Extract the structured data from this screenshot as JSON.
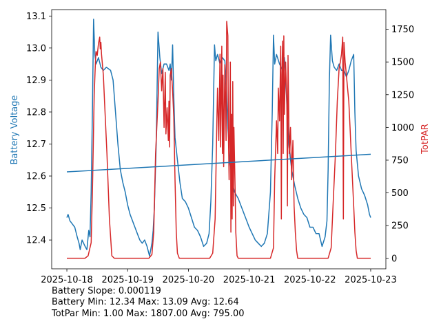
{
  "chart_data": {
    "type": "line",
    "title": "",
    "xlabel": "",
    "x_ticks": [
      "2025-10-18",
      "2025-10-19",
      "2025-10-20",
      "2025-10-21",
      "2025-10-22",
      "2025-10-23"
    ],
    "xlim_days": [
      -0.25,
      5.25
    ],
    "left_axis": {
      "label": "Battery Voltage",
      "color": "#1f77b4",
      "ylim": [
        12.31,
        13.12
      ],
      "ticks": [
        12.4,
        12.5,
        12.6,
        12.7,
        12.8,
        12.9,
        13.0,
        13.1
      ],
      "tick_labels": [
        "12.4",
        "12.5",
        "12.6",
        "12.7",
        "12.8",
        "12.9",
        "13.0",
        "13.1"
      ]
    },
    "right_axis": {
      "label": "TotPAR",
      "color": "#d62728",
      "ylim": [
        -80,
        1900
      ],
      "ticks": [
        0,
        250,
        500,
        750,
        1000,
        1250,
        1500,
        1750
      ],
      "tick_labels": [
        "0",
        "250",
        "500",
        "750",
        "1000",
        "1250",
        "1500",
        "1750"
      ]
    },
    "series": [
      {
        "name": "Battery Voltage",
        "axis": "left",
        "color": "#1f77b4",
        "points": [
          [
            0.0,
            12.47
          ],
          [
            0.02,
            12.48
          ],
          [
            0.05,
            12.46
          ],
          [
            0.09,
            12.45
          ],
          [
            0.13,
            12.44
          ],
          [
            0.17,
            12.41
          ],
          [
            0.2,
            12.39
          ],
          [
            0.22,
            12.37
          ],
          [
            0.25,
            12.4
          ],
          [
            0.3,
            12.38
          ],
          [
            0.33,
            12.37
          ],
          [
            0.36,
            12.43
          ],
          [
            0.38,
            12.41
          ],
          [
            0.4,
            12.55
          ],
          [
            0.42,
            12.8
          ],
          [
            0.44,
            13.09
          ],
          [
            0.46,
            12.98
          ],
          [
            0.48,
            12.95
          ],
          [
            0.52,
            12.97
          ],
          [
            0.56,
            12.94
          ],
          [
            0.6,
            12.93
          ],
          [
            0.65,
            12.94
          ],
          [
            0.72,
            12.93
          ],
          [
            0.76,
            12.9
          ],
          [
            0.8,
            12.8
          ],
          [
            0.84,
            12.7
          ],
          [
            0.88,
            12.62
          ],
          [
            0.92,
            12.58
          ],
          [
            0.96,
            12.55
          ],
          [
            1.0,
            12.51
          ],
          [
            1.04,
            12.48
          ],
          [
            1.08,
            12.46
          ],
          [
            1.12,
            12.44
          ],
          [
            1.16,
            12.42
          ],
          [
            1.2,
            12.4
          ],
          [
            1.24,
            12.39
          ],
          [
            1.28,
            12.4
          ],
          [
            1.32,
            12.38
          ],
          [
            1.36,
            12.35
          ],
          [
            1.4,
            12.39
          ],
          [
            1.42,
            12.43
          ],
          [
            1.44,
            12.5
          ],
          [
            1.47,
            12.7
          ],
          [
            1.5,
            13.05
          ],
          [
            1.53,
            12.97
          ],
          [
            1.56,
            12.92
          ],
          [
            1.6,
            12.95
          ],
          [
            1.64,
            12.95
          ],
          [
            1.68,
            12.93
          ],
          [
            1.7,
            12.95
          ],
          [
            1.72,
            12.9
          ],
          [
            1.74,
            13.01
          ],
          [
            1.76,
            12.85
          ],
          [
            1.78,
            12.72
          ],
          [
            1.82,
            12.65
          ],
          [
            1.86,
            12.58
          ],
          [
            1.9,
            12.53
          ],
          [
            1.95,
            12.52
          ],
          [
            2.0,
            12.5
          ],
          [
            2.05,
            12.47
          ],
          [
            2.1,
            12.44
          ],
          [
            2.15,
            12.43
          ],
          [
            2.2,
            12.41
          ],
          [
            2.25,
            12.38
          ],
          [
            2.3,
            12.39
          ],
          [
            2.34,
            12.42
          ],
          [
            2.37,
            12.52
          ],
          [
            2.4,
            12.7
          ],
          [
            2.43,
            13.01
          ],
          [
            2.45,
            12.96
          ],
          [
            2.48,
            12.98
          ],
          [
            2.52,
            12.95
          ],
          [
            2.56,
            12.97
          ],
          [
            2.6,
            12.96
          ],
          [
            2.62,
            12.9
          ],
          [
            2.65,
            12.75
          ],
          [
            2.68,
            12.66
          ],
          [
            2.72,
            12.58
          ],
          [
            2.76,
            12.55
          ],
          [
            2.82,
            12.53
          ],
          [
            2.88,
            12.5
          ],
          [
            2.94,
            12.47
          ],
          [
            3.0,
            12.44
          ],
          [
            3.05,
            12.42
          ],
          [
            3.1,
            12.4
          ],
          [
            3.15,
            12.39
          ],
          [
            3.2,
            12.38
          ],
          [
            3.25,
            12.39
          ],
          [
            3.3,
            12.42
          ],
          [
            3.35,
            12.55
          ],
          [
            3.38,
            12.8
          ],
          [
            3.4,
            13.04
          ],
          [
            3.42,
            12.95
          ],
          [
            3.45,
            12.98
          ],
          [
            3.5,
            12.95
          ],
          [
            3.55,
            12.93
          ],
          [
            3.58,
            12.97
          ],
          [
            3.6,
            12.92
          ],
          [
            3.62,
            12.82
          ],
          [
            3.65,
            12.7
          ],
          [
            3.7,
            12.62
          ],
          [
            3.75,
            12.57
          ],
          [
            3.8,
            12.53
          ],
          [
            3.85,
            12.5
          ],
          [
            3.9,
            12.48
          ],
          [
            3.95,
            12.47
          ],
          [
            4.0,
            12.44
          ],
          [
            4.05,
            12.44
          ],
          [
            4.1,
            12.42
          ],
          [
            4.15,
            12.42
          ],
          [
            4.2,
            12.38
          ],
          [
            4.25,
            12.41
          ],
          [
            4.28,
            12.46
          ],
          [
            4.3,
            12.62
          ],
          [
            4.32,
            12.9
          ],
          [
            4.34,
            13.04
          ],
          [
            4.37,
            12.96
          ],
          [
            4.4,
            12.94
          ],
          [
            4.44,
            12.93
          ],
          [
            4.48,
            12.95
          ],
          [
            4.52,
            12.93
          ],
          [
            4.56,
            12.93
          ],
          [
            4.6,
            12.91
          ],
          [
            4.64,
            12.93
          ],
          [
            4.68,
            12.96
          ],
          [
            4.72,
            12.98
          ],
          [
            4.74,
            12.8
          ],
          [
            4.76,
            12.68
          ],
          [
            4.8,
            12.6
          ],
          [
            4.85,
            12.56
          ],
          [
            4.9,
            12.54
          ],
          [
            4.95,
            12.51
          ],
          [
            4.98,
            12.48
          ],
          [
            5.0,
            12.47
          ]
        ]
      },
      {
        "name": "TotPAR",
        "axis": "right",
        "color": "#d62728",
        "points": [
          [
            0.0,
            1
          ],
          [
            0.3,
            1
          ],
          [
            0.35,
            20
          ],
          [
            0.4,
            120
          ],
          [
            0.42,
            500
          ],
          [
            0.45,
            1250
          ],
          [
            0.47,
            1500
          ],
          [
            0.48,
            1580
          ],
          [
            0.5,
            1550
          ],
          [
            0.52,
            1640
          ],
          [
            0.54,
            1690
          ],
          [
            0.55,
            1600
          ],
          [
            0.56,
            1650
          ],
          [
            0.57,
            1560
          ],
          [
            0.6,
            1400
          ],
          [
            0.62,
            1200
          ],
          [
            0.66,
            800
          ],
          [
            0.7,
            300
          ],
          [
            0.74,
            20
          ],
          [
            0.78,
            1
          ],
          [
            1.35,
            1
          ],
          [
            1.4,
            30
          ],
          [
            1.43,
            200
          ],
          [
            1.46,
            800
          ],
          [
            1.5,
            1200
          ],
          [
            1.52,
            1450
          ],
          [
            1.54,
            1500
          ],
          [
            1.56,
            1280
          ],
          [
            1.58,
            1450
          ],
          [
            1.6,
            1000
          ],
          [
            1.62,
            1420
          ],
          [
            1.63,
            950
          ],
          [
            1.65,
            1150
          ],
          [
            1.67,
            900
          ],
          [
            1.68,
            1200
          ],
          [
            1.69,
            850
          ],
          [
            1.7,
            1400
          ],
          [
            1.72,
            1450
          ],
          [
            1.74,
            1280
          ],
          [
            1.76,
            1080
          ],
          [
            1.78,
            600
          ],
          [
            1.8,
            200
          ],
          [
            1.82,
            40
          ],
          [
            1.85,
            1
          ],
          [
            2.35,
            1
          ],
          [
            2.4,
            40
          ],
          [
            2.44,
            300
          ],
          [
            2.47,
            1100
          ],
          [
            2.48,
            1300
          ],
          [
            2.5,
            900
          ],
          [
            2.52,
            1560
          ],
          [
            2.53,
            850
          ],
          [
            2.55,
            1620
          ],
          [
            2.56,
            800
          ],
          [
            2.57,
            1400
          ],
          [
            2.58,
            700
          ],
          [
            2.6,
            1480
          ],
          [
            2.62,
            900
          ],
          [
            2.63,
            1810
          ],
          [
            2.65,
            1700
          ],
          [
            2.66,
            900
          ],
          [
            2.67,
            600
          ],
          [
            2.69,
            1500
          ],
          [
            2.7,
            200
          ],
          [
            2.71,
            1100
          ],
          [
            2.72,
            300
          ],
          [
            2.73,
            1350
          ],
          [
            2.74,
            400
          ],
          [
            2.75,
            1000
          ],
          [
            2.77,
            500
          ],
          [
            2.78,
            200
          ],
          [
            2.8,
            20
          ],
          [
            2.82,
            1
          ],
          [
            3.35,
            1
          ],
          [
            3.4,
            80
          ],
          [
            3.42,
            600
          ],
          [
            3.45,
            1050
          ],
          [
            3.47,
            800
          ],
          [
            3.48,
            1300
          ],
          [
            3.5,
            1050
          ],
          [
            3.52,
            1620
          ],
          [
            3.53,
            300
          ],
          [
            3.54,
            1400
          ],
          [
            3.55,
            1660
          ],
          [
            3.56,
            800
          ],
          [
            3.57,
            1700
          ],
          [
            3.58,
            1100
          ],
          [
            3.6,
            1500
          ],
          [
            3.62,
            1200
          ],
          [
            3.63,
            400
          ],
          [
            3.64,
            1550
          ],
          [
            3.66,
            800
          ],
          [
            3.68,
            1000
          ],
          [
            3.7,
            600
          ],
          [
            3.72,
            900
          ],
          [
            3.74,
            400
          ],
          [
            3.76,
            200
          ],
          [
            3.78,
            60
          ],
          [
            3.8,
            1
          ],
          [
            4.3,
            1
          ],
          [
            4.35,
            80
          ],
          [
            4.38,
            400
          ],
          [
            4.42,
            800
          ],
          [
            4.45,
            1200
          ],
          [
            4.48,
            1450
          ],
          [
            4.5,
            1500
          ],
          [
            4.52,
            1560
          ],
          [
            4.54,
            1690
          ],
          [
            4.55,
            300
          ],
          [
            4.56,
            1650
          ],
          [
            4.58,
            1500
          ],
          [
            4.6,
            1400
          ],
          [
            4.62,
            1300
          ],
          [
            4.64,
            1200
          ],
          [
            4.66,
            1000
          ],
          [
            4.68,
            800
          ],
          [
            4.7,
            600
          ],
          [
            4.72,
            400
          ],
          [
            4.74,
            200
          ],
          [
            4.76,
            60
          ],
          [
            4.78,
            1
          ],
          [
            5.0,
            1
          ]
        ]
      },
      {
        "name": "Battery trend",
        "axis": "left",
        "color": "#1f77b4",
        "points": [
          [
            0.0,
            12.613
          ],
          [
            5.0,
            12.668
          ]
        ]
      }
    ]
  },
  "stats": {
    "line1": "Battery Slope: 0.000119",
    "line2": "Battery Min: 12.34 Max: 13.09 Avg: 12.64",
    "line3": "TotPar Min: 1.00 Max: 1807.00 Avg: 795.00"
  }
}
